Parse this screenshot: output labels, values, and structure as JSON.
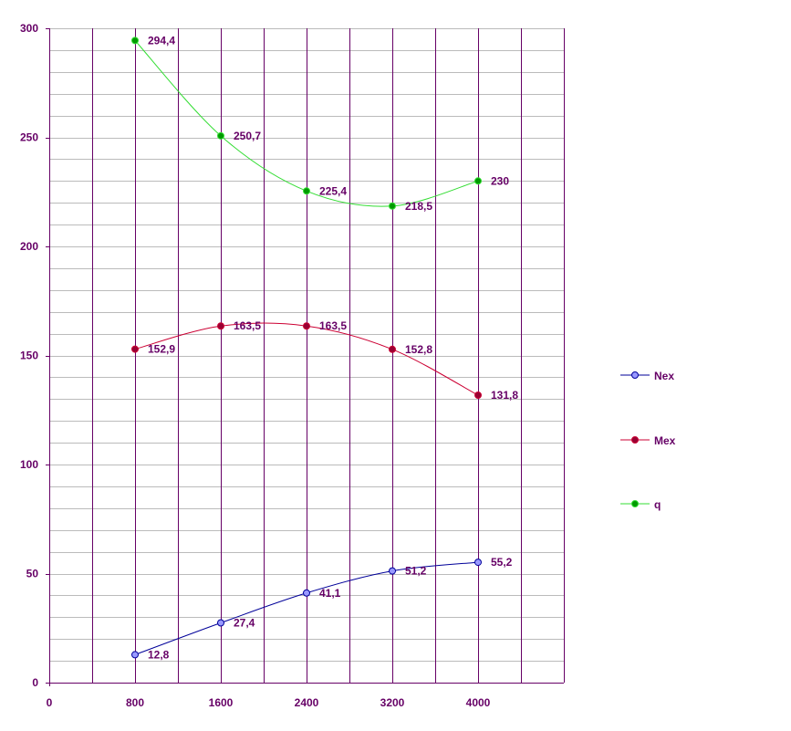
{
  "chart_data": {
    "type": "line",
    "title": "",
    "xlabel": "",
    "ylabel": "",
    "x": [
      800,
      1600,
      2400,
      3200,
      4000
    ],
    "x_ticks": [
      "0",
      "800",
      "1600",
      "2400",
      "3200",
      "4000"
    ],
    "y_ticks": [
      "0",
      "50",
      "100",
      "150",
      "200",
      "250",
      "300"
    ],
    "xlim": [
      0,
      4800
    ],
    "ylim": [
      0,
      300
    ],
    "grid": {
      "horizontal_step": 10,
      "vertical_step": 400
    },
    "legend_position": "right",
    "series": [
      {
        "name": "Nex",
        "color": "#000099",
        "marker_fill": "#9999ff",
        "values": [
          12.8,
          27.4,
          41.1,
          51.2,
          55.2
        ],
        "labels": [
          "12,8",
          "27,4",
          "41,1",
          "51,2",
          "55,2"
        ]
      },
      {
        "name": "Mex",
        "color": "#cc0033",
        "marker_fill": "#990033",
        "values": [
          152.9,
          163.5,
          163.5,
          152.8,
          131.8
        ],
        "labels": [
          "152,9",
          "163,5",
          "163,5",
          "152,8",
          "131,8"
        ]
      },
      {
        "name": "q",
        "color": "#33dd33",
        "marker_fill": "#009900",
        "values": [
          294.4,
          250.7,
          225.4,
          218.5,
          230
        ],
        "labels": [
          "294,4",
          "250,7",
          "225,4",
          "218,5",
          "230"
        ]
      }
    ],
    "colors": {
      "horizontal_grid": "#bbbbbb",
      "vertical_grid": "#660066",
      "axis": "#660066",
      "text": "#660066"
    }
  }
}
